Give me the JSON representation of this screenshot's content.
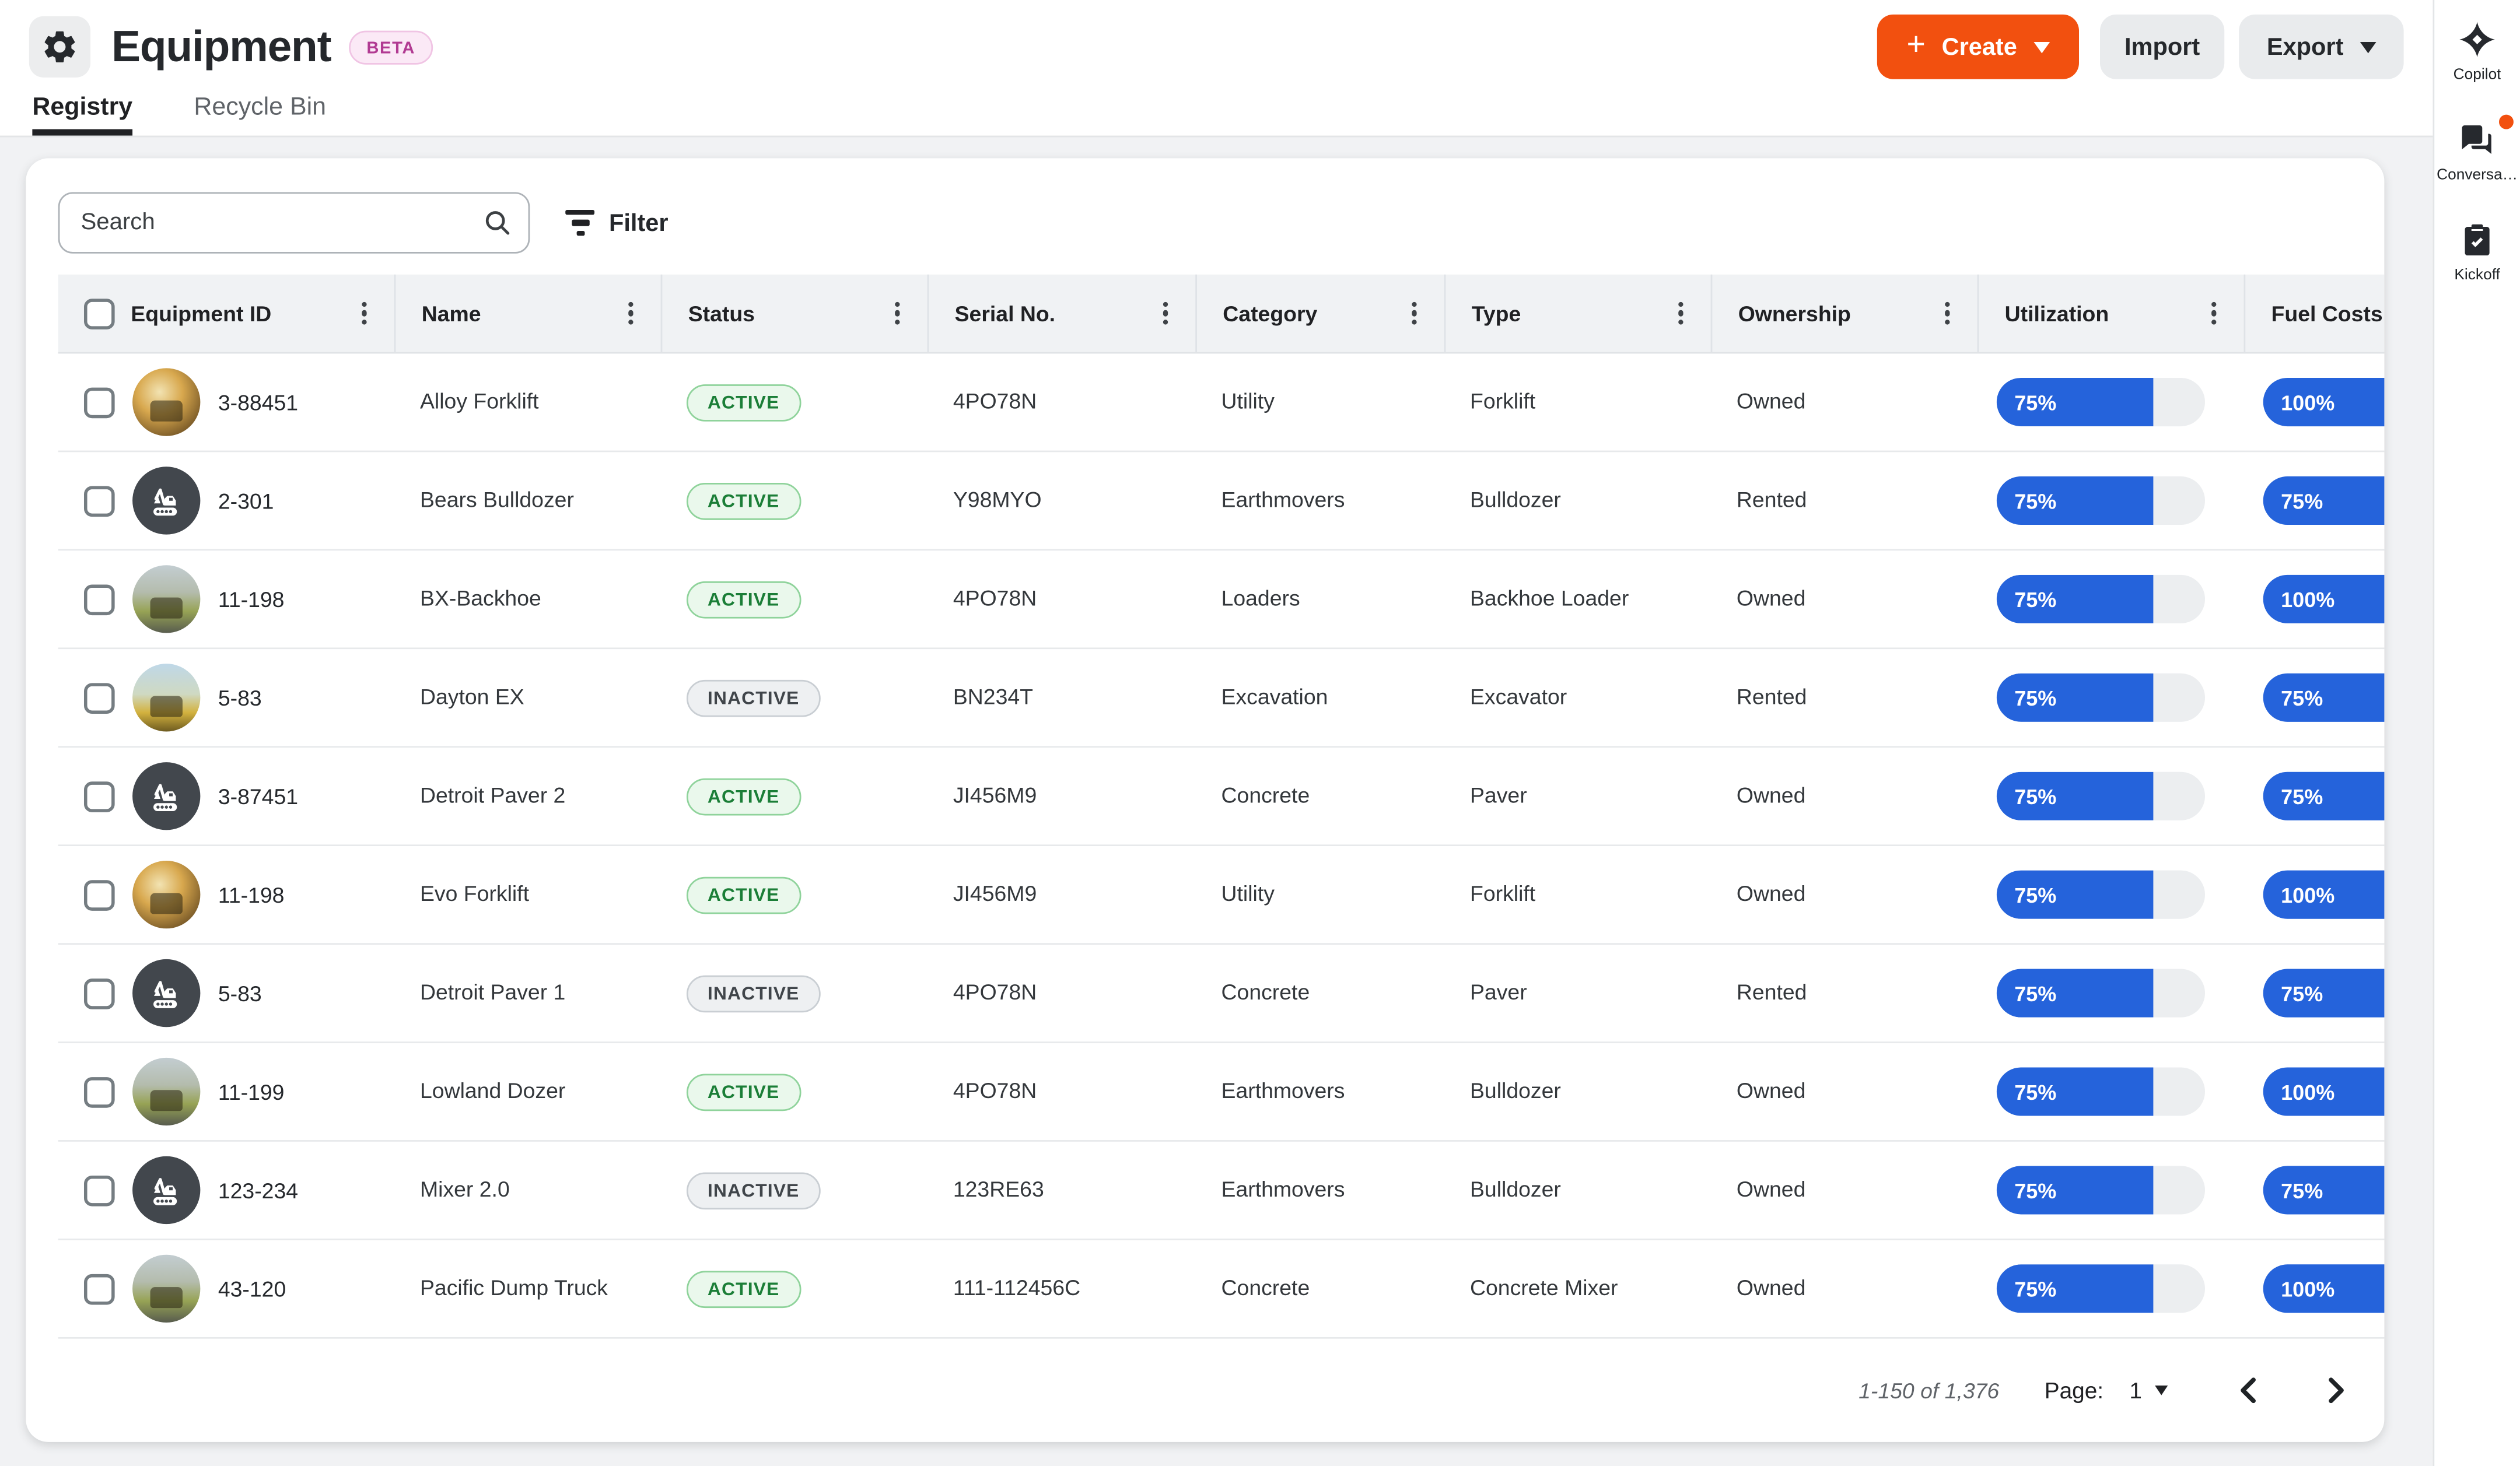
{
  "header": {
    "title": "Equipment",
    "beta_label": "BETA",
    "create_label": "Create",
    "import_label": "Import",
    "export_label": "Export",
    "app_icon": "gear-icon"
  },
  "tabs": [
    {
      "label": "Registry",
      "active": true
    },
    {
      "label": "Recycle Bin",
      "active": false
    }
  ],
  "toolbar": {
    "search_placeholder": "Search",
    "filter_label": "Filter",
    "icons": [
      "search-icon",
      "filter-icon"
    ]
  },
  "table": {
    "columns": [
      "Equipment ID",
      "Name",
      "Status",
      "Serial No.",
      "Category",
      "Type",
      "Ownership",
      "Utilization",
      "Fuel Costs"
    ],
    "rows": [
      {
        "id": "3-88451",
        "name": "Alloy Forklift",
        "status": "ACTIVE",
        "serial": "4PO78N",
        "category": "Utility",
        "type": "Forklift",
        "ownership": "Owned",
        "utilization": 75,
        "fuel": 100,
        "avatar": "photo-a"
      },
      {
        "id": "2-301",
        "name": "Bears Bulldozer",
        "status": "ACTIVE",
        "serial": "Y98MYO",
        "category": "Earthmovers",
        "type": "Bulldozer",
        "ownership": "Rented",
        "utilization": 75,
        "fuel": 75,
        "avatar": "icon"
      },
      {
        "id": "11-198",
        "name": "BX-Backhoe",
        "status": "ACTIVE",
        "serial": "4PO78N",
        "category": "Loaders",
        "type": "Backhoe Loader",
        "ownership": "Owned",
        "utilization": 75,
        "fuel": 100,
        "avatar": "photo-b"
      },
      {
        "id": "5-83",
        "name": "Dayton EX",
        "status": "INACTIVE",
        "serial": "BN234T",
        "category": "Excavation",
        "type": "Excavator",
        "ownership": "Rented",
        "utilization": 75,
        "fuel": 75,
        "avatar": "photo-c"
      },
      {
        "id": "3-87451",
        "name": "Detroit Paver 2",
        "status": "ACTIVE",
        "serial": "JI456M9",
        "category": "Concrete",
        "type": "Paver",
        "ownership": "Owned",
        "utilization": 75,
        "fuel": 75,
        "avatar": "icon"
      },
      {
        "id": "11-198",
        "name": "Evo Forklift",
        "status": "ACTIVE",
        "serial": "JI456M9",
        "category": "Utility",
        "type": "Forklift",
        "ownership": "Owned",
        "utilization": 75,
        "fuel": 100,
        "avatar": "photo-a"
      },
      {
        "id": "5-83",
        "name": "Detroit Paver 1",
        "status": "INACTIVE",
        "serial": "4PO78N",
        "category": "Concrete",
        "type": "Paver",
        "ownership": "Rented",
        "utilization": 75,
        "fuel": 75,
        "avatar": "icon"
      },
      {
        "id": "11-199",
        "name": "Lowland Dozer",
        "status": "ACTIVE",
        "serial": "4PO78N",
        "category": "Earthmovers",
        "type": "Bulldozer",
        "ownership": "Owned",
        "utilization": 75,
        "fuel": 100,
        "avatar": "photo-b"
      },
      {
        "id": "123-234",
        "name": "Mixer 2.0",
        "status": "INACTIVE",
        "serial": "123RE63",
        "category": "Earthmovers",
        "type": "Bulldozer",
        "ownership": "Owned",
        "utilization": 75,
        "fuel": 75,
        "avatar": "icon"
      },
      {
        "id": "43-120",
        "name": "Pacific Dump Truck",
        "status": "ACTIVE",
        "serial": "111-112456C",
        "category": "Concrete",
        "type": "Concrete Mixer",
        "ownership": "Owned",
        "utilization": 75,
        "fuel": 100,
        "avatar": "photo-b"
      }
    ]
  },
  "footer": {
    "range_text": "1-150 of 1,376",
    "page_label": "Page:",
    "page_value": "1"
  },
  "sidebar": [
    {
      "label": "Copilot",
      "icon": "copilot-icon",
      "notification": false
    },
    {
      "label": "Conversa…",
      "icon": "conversations-icon",
      "notification": true
    },
    {
      "label": "Kickoff",
      "icon": "kickoff-icon",
      "notification": false
    }
  ],
  "colors": {
    "accent_orange": "#F2500F",
    "bar_blue": "#2563DB",
    "active_green_text": "#1B7E37",
    "active_green_bg": "#EAF8EC",
    "inactive_gray_bg": "#EEF0F2",
    "beta_pink_text": "#B13A92",
    "beta_pink_bg": "#FBE9F6",
    "page_bg": "#F1F2F4",
    "header_row_bg": "#F0F2F4"
  }
}
